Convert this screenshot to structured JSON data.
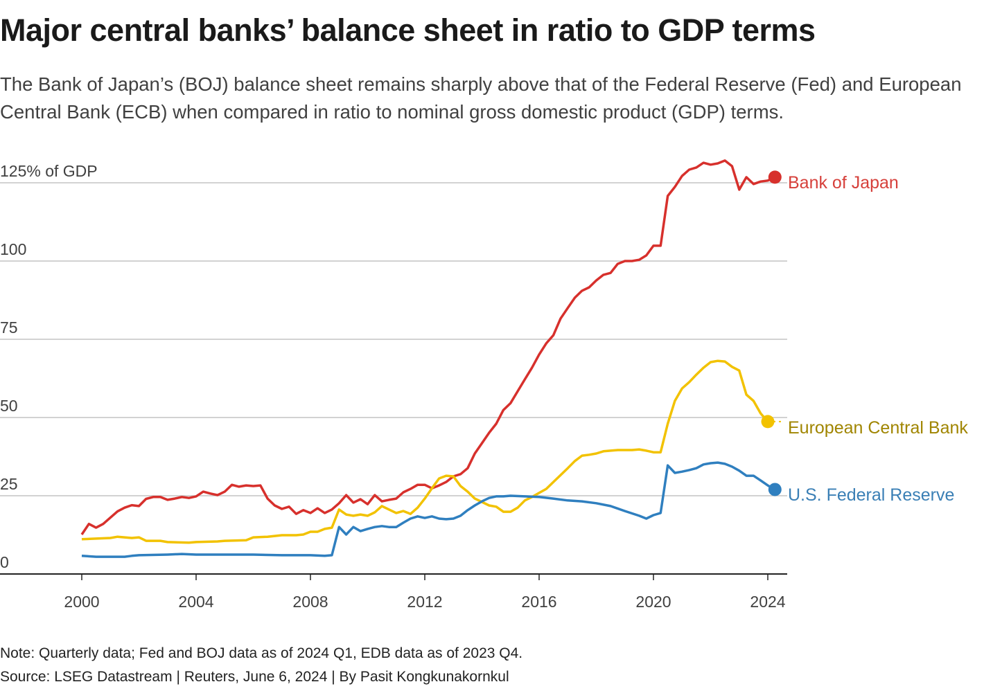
{
  "title": "Major central banks’ balance sheet in ratio to GDP terms",
  "subtitle": "The Bank of Japan’s (BOJ) balance sheet remains sharply above that of the Federal Reserve (Fed) and European Central Bank (ECB) when compared in ratio to nominal gross domestic product (GDP) terms.",
  "note": "Note: Quarterly data; Fed and BOJ data as of 2024 Q1, EDB data as of 2023 Q4.",
  "source": "Source: LSEG Datastream | Reuters, June 6, 2024 | By Pasit Kongkunakornkul",
  "chart_data": {
    "type": "line",
    "xlabel": "",
    "ylabel": "",
    "xlim": [
      1998.5,
      2024.7
    ],
    "ylim": [
      0,
      125
    ],
    "grid": true,
    "x_ticks": [
      2000,
      2004,
      2008,
      2012,
      2016,
      2020,
      2024
    ],
    "x_tick_labels": [
      "2000",
      "2004",
      "2008",
      "2012",
      "2016",
      "2020",
      "2024"
    ],
    "y_ticks": [
      0,
      25,
      50,
      75,
      100,
      125
    ],
    "y_tick_labels": [
      "0",
      "25",
      "50",
      "75",
      "100",
      "125% of GDP"
    ],
    "legend": "direct labels at line ends (right)",
    "series": [
      {
        "name": "Bank of Japan",
        "color": "#d7302c",
        "label_color": "#d6403b",
        "points": [
          [
            2000,
            12.6
          ],
          [
            2000.25,
            16
          ],
          [
            2000.5,
            14.8
          ],
          [
            2000.75,
            16
          ],
          [
            2001,
            18
          ],
          [
            2001.25,
            20
          ],
          [
            2001.5,
            21.2
          ],
          [
            2001.75,
            22
          ],
          [
            2002,
            21.7
          ],
          [
            2002.25,
            24
          ],
          [
            2002.5,
            24.6
          ],
          [
            2002.75,
            24.6
          ],
          [
            2003,
            23.7
          ],
          [
            2003.25,
            24.1
          ],
          [
            2003.5,
            24.6
          ],
          [
            2003.75,
            24.3
          ],
          [
            2004,
            24.8
          ],
          [
            2004.25,
            26.3
          ],
          [
            2004.5,
            25.7
          ],
          [
            2004.75,
            25.2
          ],
          [
            2005,
            26.3
          ],
          [
            2005.25,
            28.5
          ],
          [
            2005.5,
            27.9
          ],
          [
            2005.75,
            28.3
          ],
          [
            2006,
            28.1
          ],
          [
            2006.25,
            28.3
          ],
          [
            2006.5,
            24.1
          ],
          [
            2006.75,
            21.9
          ],
          [
            2007,
            20.8
          ],
          [
            2007.25,
            21.5
          ],
          [
            2007.5,
            19.2
          ],
          [
            2007.75,
            20.4
          ],
          [
            2008,
            19.5
          ],
          [
            2008.25,
            21
          ],
          [
            2008.5,
            19.5
          ],
          [
            2008.75,
            20.6
          ],
          [
            2009,
            22.6
          ],
          [
            2009.25,
            25.2
          ],
          [
            2009.5,
            22.8
          ],
          [
            2009.75,
            23.9
          ],
          [
            2010,
            22.3
          ],
          [
            2010.25,
            25.2
          ],
          [
            2010.5,
            23.2
          ],
          [
            2010.75,
            23.7
          ],
          [
            2011,
            24.1
          ],
          [
            2011.25,
            26.1
          ],
          [
            2011.5,
            27.2
          ],
          [
            2011.75,
            28.5
          ],
          [
            2012,
            28.5
          ],
          [
            2012.25,
            27.4
          ],
          [
            2012.5,
            28.3
          ],
          [
            2012.75,
            29.4
          ],
          [
            2013,
            31.2
          ],
          [
            2013.25,
            31.9
          ],
          [
            2013.5,
            33.8
          ],
          [
            2013.75,
            38.5
          ],
          [
            2014,
            41.8
          ],
          [
            2014.25,
            45.1
          ],
          [
            2014.5,
            48
          ],
          [
            2014.75,
            52.4
          ],
          [
            2015,
            54.6
          ],
          [
            2015.25,
            58.4
          ],
          [
            2015.5,
            62.2
          ],
          [
            2015.75,
            65.9
          ],
          [
            2016,
            70.1
          ],
          [
            2016.25,
            73.7
          ],
          [
            2016.5,
            76.3
          ],
          [
            2016.75,
            81.6
          ],
          [
            2017,
            85
          ],
          [
            2017.25,
            88.3
          ],
          [
            2017.5,
            90.5
          ],
          [
            2017.75,
            91.6
          ],
          [
            2018,
            93.8
          ],
          [
            2018.25,
            95.6
          ],
          [
            2018.5,
            96.2
          ],
          [
            2018.75,
            99.1
          ],
          [
            2019,
            100
          ],
          [
            2019.25,
            100
          ],
          [
            2019.5,
            100.4
          ],
          [
            2019.75,
            101.8
          ],
          [
            2020,
            104.9
          ],
          [
            2020.25,
            104.9
          ],
          [
            2020.5,
            120.8
          ],
          [
            2020.75,
            123.7
          ],
          [
            2021,
            127.2
          ],
          [
            2021.25,
            129.2
          ],
          [
            2021.5,
            129.9
          ],
          [
            2021.75,
            131.4
          ],
          [
            2022,
            130.8
          ],
          [
            2022.25,
            131.2
          ],
          [
            2022.5,
            132.1
          ],
          [
            2022.75,
            130.3
          ],
          [
            2023,
            122.8
          ],
          [
            2023.25,
            126.8
          ],
          [
            2023.5,
            124.6
          ],
          [
            2023.75,
            125.4
          ],
          [
            2024,
            125.7
          ],
          [
            2024.25,
            126.8
          ]
        ]
      },
      {
        "name": "European Central Bank",
        "color": "#f2c200",
        "label_color": "#a08500",
        "points": [
          [
            2000,
            11.1
          ],
          [
            2000.5,
            11.3
          ],
          [
            2001,
            11.5
          ],
          [
            2001.25,
            11.9
          ],
          [
            2001.75,
            11.5
          ],
          [
            2002,
            11.7
          ],
          [
            2002.25,
            10.6
          ],
          [
            2002.75,
            10.6
          ],
          [
            2003,
            10.2
          ],
          [
            2003.75,
            10
          ],
          [
            2004,
            10.2
          ],
          [
            2004.75,
            10.4
          ],
          [
            2005,
            10.6
          ],
          [
            2005.75,
            10.8
          ],
          [
            2006,
            11.7
          ],
          [
            2006.5,
            11.9
          ],
          [
            2007,
            12.4
          ],
          [
            2007.5,
            12.4
          ],
          [
            2007.75,
            12.6
          ],
          [
            2008,
            13.5
          ],
          [
            2008.25,
            13.5
          ],
          [
            2008.5,
            14.4
          ],
          [
            2008.75,
            14.8
          ],
          [
            2009,
            20.6
          ],
          [
            2009.25,
            19
          ],
          [
            2009.5,
            18.6
          ],
          [
            2009.75,
            19
          ],
          [
            2010,
            18.6
          ],
          [
            2010.25,
            19.7
          ],
          [
            2010.5,
            21.7
          ],
          [
            2010.75,
            20.6
          ],
          [
            2011,
            19.5
          ],
          [
            2011.25,
            20.1
          ],
          [
            2011.5,
            19.2
          ],
          [
            2011.75,
            21.2
          ],
          [
            2012,
            24.1
          ],
          [
            2012.25,
            27.4
          ],
          [
            2012.5,
            30.5
          ],
          [
            2012.75,
            31.4
          ],
          [
            2013,
            31.2
          ],
          [
            2013.25,
            28.1
          ],
          [
            2013.5,
            26.3
          ],
          [
            2013.75,
            24.1
          ],
          [
            2014,
            23
          ],
          [
            2014.25,
            21.9
          ],
          [
            2014.5,
            21.5
          ],
          [
            2014.75,
            19.9
          ],
          [
            2015,
            19.9
          ],
          [
            2015.25,
            21.2
          ],
          [
            2015.5,
            23.5
          ],
          [
            2015.75,
            24.6
          ],
          [
            2016,
            25.9
          ],
          [
            2016.25,
            27.2
          ],
          [
            2016.5,
            29.4
          ],
          [
            2016.75,
            31.6
          ],
          [
            2017,
            33.8
          ],
          [
            2017.25,
            36.1
          ],
          [
            2017.5,
            37.8
          ],
          [
            2017.75,
            38.1
          ],
          [
            2018,
            38.5
          ],
          [
            2018.25,
            39.2
          ],
          [
            2018.5,
            39.4
          ],
          [
            2018.75,
            39.6
          ],
          [
            2019,
            39.6
          ],
          [
            2019.25,
            39.6
          ],
          [
            2019.5,
            39.8
          ],
          [
            2019.75,
            39.4
          ],
          [
            2020,
            38.9
          ],
          [
            2020.25,
            38.9
          ],
          [
            2020.5,
            48
          ],
          [
            2020.75,
            55.3
          ],
          [
            2021,
            59.3
          ],
          [
            2021.25,
            61.3
          ],
          [
            2021.5,
            63.7
          ],
          [
            2021.75,
            65.9
          ],
          [
            2022,
            67.7
          ],
          [
            2022.25,
            68.1
          ],
          [
            2022.5,
            67.9
          ],
          [
            2022.75,
            66.2
          ],
          [
            2023,
            65
          ],
          [
            2023.25,
            57.3
          ],
          [
            2023.5,
            55.3
          ],
          [
            2023.75,
            51.3
          ],
          [
            2024,
            48.7
          ]
        ]
      },
      {
        "name": "U.S. Federal Reserve",
        "color": "#2f7fbf",
        "label_color": "#3a7fb5",
        "points": [
          [
            2000,
            5.8
          ],
          [
            2000.5,
            5.5
          ],
          [
            2001,
            5.5
          ],
          [
            2001.5,
            5.5
          ],
          [
            2001.75,
            5.8
          ],
          [
            2002,
            6
          ],
          [
            2003,
            6.2
          ],
          [
            2003.5,
            6.4
          ],
          [
            2004,
            6.2
          ],
          [
            2005,
            6.2
          ],
          [
            2006,
            6.2
          ],
          [
            2007,
            6
          ],
          [
            2008,
            6
          ],
          [
            2008.5,
            5.8
          ],
          [
            2008.75,
            6
          ],
          [
            2009,
            15
          ],
          [
            2009.25,
            12.6
          ],
          [
            2009.5,
            15
          ],
          [
            2009.75,
            13.7
          ],
          [
            2010,
            14.4
          ],
          [
            2010.25,
            15
          ],
          [
            2010.5,
            15.3
          ],
          [
            2010.75,
            15
          ],
          [
            2011,
            15
          ],
          [
            2011.25,
            16.4
          ],
          [
            2011.5,
            17.7
          ],
          [
            2011.75,
            18.4
          ],
          [
            2012,
            17.9
          ],
          [
            2012.25,
            18.4
          ],
          [
            2012.5,
            17.7
          ],
          [
            2012.75,
            17.5
          ],
          [
            2013,
            17.7
          ],
          [
            2013.25,
            18.6
          ],
          [
            2013.5,
            20.4
          ],
          [
            2013.75,
            21.9
          ],
          [
            2014,
            23.2
          ],
          [
            2014.25,
            24.3
          ],
          [
            2014.5,
            24.8
          ],
          [
            2014.75,
            24.8
          ],
          [
            2015,
            25
          ],
          [
            2015.5,
            24.8
          ],
          [
            2016,
            24.6
          ],
          [
            2016.5,
            24.1
          ],
          [
            2017,
            23.5
          ],
          [
            2017.5,
            23.2
          ],
          [
            2018,
            22.6
          ],
          [
            2018.5,
            21.7
          ],
          [
            2019,
            20.1
          ],
          [
            2019.5,
            18.6
          ],
          [
            2019.75,
            17.7
          ],
          [
            2020,
            18.8
          ],
          [
            2020.25,
            19.5
          ],
          [
            2020.5,
            34.7
          ],
          [
            2020.75,
            32.3
          ],
          [
            2021,
            32.7
          ],
          [
            2021.25,
            33.2
          ],
          [
            2021.5,
            33.8
          ],
          [
            2021.75,
            35
          ],
          [
            2022,
            35.4
          ],
          [
            2022.25,
            35.6
          ],
          [
            2022.5,
            35.2
          ],
          [
            2022.75,
            34.3
          ],
          [
            2023,
            33
          ],
          [
            2023.25,
            31.4
          ],
          [
            2023.5,
            31.4
          ],
          [
            2023.75,
            29.9
          ],
          [
            2024,
            28.3
          ],
          [
            2024.25,
            27
          ]
        ]
      }
    ]
  }
}
